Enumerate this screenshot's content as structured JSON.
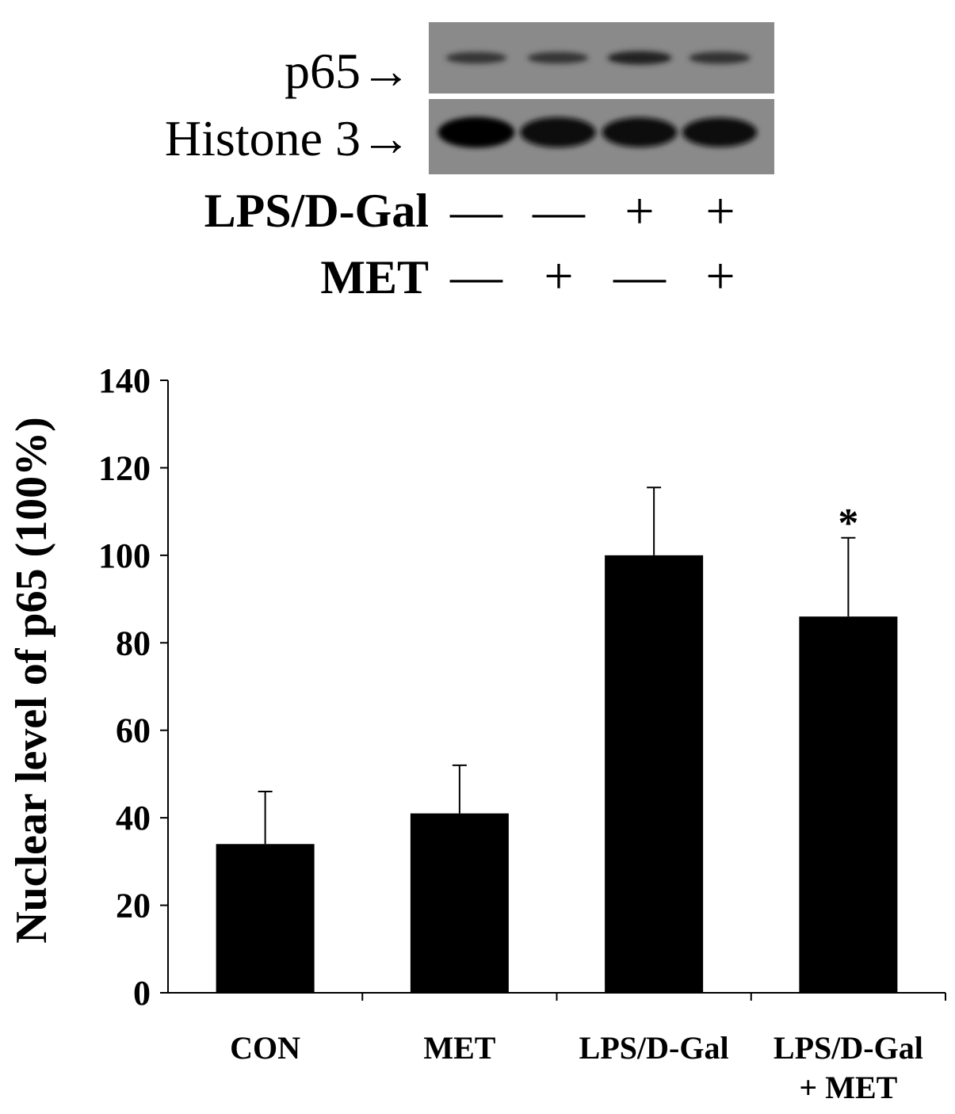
{
  "blot": {
    "rows": [
      {
        "label": "p65→",
        "intensities": [
          0.45,
          0.45,
          0.65,
          0.5
        ]
      },
      {
        "label": "Histone 3→",
        "intensities": [
          1.0,
          0.95,
          0.92,
          0.9
        ]
      }
    ],
    "treatments": [
      {
        "label": "LPS/D-Gal",
        "signs": [
          "—",
          "—",
          "+",
          "+"
        ]
      },
      {
        "label": "MET",
        "signs": [
          "—",
          "+",
          "—",
          "+"
        ]
      }
    ]
  },
  "chart_data": {
    "type": "bar",
    "categories": [
      "CON",
      "MET",
      "LPS/D-Gal",
      "LPS/D-Gal + MET"
    ],
    "category_lines": [
      [
        "CON"
      ],
      [
        "MET"
      ],
      [
        "LPS/D-Gal"
      ],
      [
        "LPS/D-Gal",
        "+ MET"
      ]
    ],
    "values": [
      34,
      41,
      100,
      86
    ],
    "errors": [
      12,
      11,
      15.5,
      18
    ],
    "annotations": [
      "",
      "",
      "",
      "*"
    ],
    "ylabel": "Nuclear level of p65 (100%)",
    "xlabel": "",
    "title": "",
    "ylim": [
      0,
      140
    ],
    "yticks": [
      0,
      20,
      40,
      60,
      80,
      100,
      120,
      140
    ],
    "grid": false,
    "bar_color": "#000000"
  }
}
